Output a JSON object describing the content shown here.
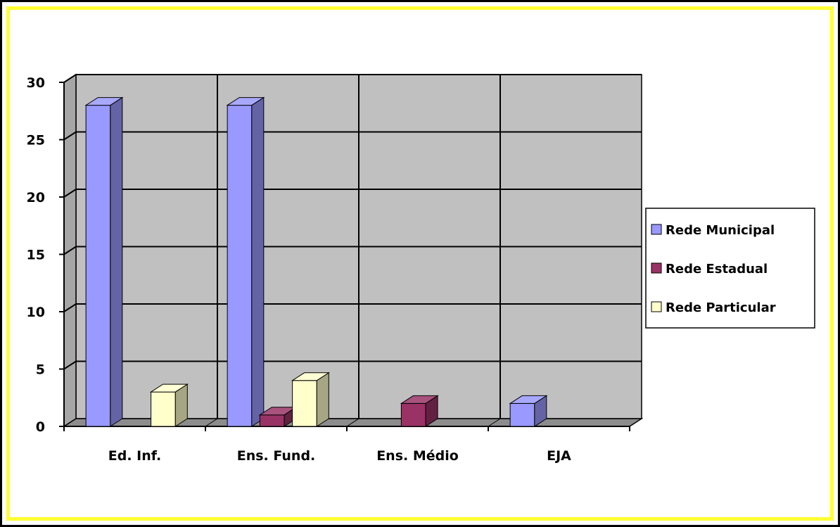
{
  "chart_data": {
    "type": "bar",
    "categories": [
      "Ed. Inf.",
      "Ens. Fund.",
      "Ens. Médio",
      "EJA"
    ],
    "series": [
      {
        "name": "Rede Municipal",
        "values": [
          28,
          28,
          0,
          2
        ],
        "color": "#9999ff"
      },
      {
        "name": "Rede Estadual",
        "values": [
          0,
          1,
          2,
          0
        ],
        "color": "#993366"
      },
      {
        "name": "Rede Particular",
        "values": [
          3,
          4,
          0,
          0
        ],
        "color": "#ffffcc"
      }
    ],
    "yticks": [
      0,
      5,
      10,
      15,
      20,
      25,
      30
    ],
    "ylim": [
      0,
      30
    ],
    "grid": true,
    "legend_position": "right",
    "title": "",
    "xlabel": "",
    "ylabel": ""
  }
}
